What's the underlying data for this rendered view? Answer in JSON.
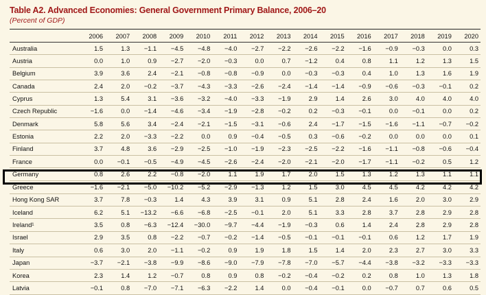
{
  "title": "Table A2. Advanced Economies: General Government Primary Balance, 2006–20",
  "subtitle": "(Percent of GDP)",
  "years": [
    "2006",
    "2007",
    "2008",
    "2009",
    "2010",
    "2011",
    "2012",
    "2013",
    "2014",
    "2015",
    "2016",
    "2017",
    "2018",
    "2019",
    "2020"
  ],
  "rows": [
    {
      "country": "Australia",
      "values": [
        "1.5",
        "1.3",
        "−1.1",
        "−4.5",
        "−4.8",
        "−4.0",
        "−2.7",
        "−2.2",
        "−2.6",
        "−2.2",
        "−1.6",
        "−0.9",
        "−0.3",
        "0.0",
        "0.3"
      ]
    },
    {
      "country": "Austria",
      "values": [
        "0.0",
        "1.0",
        "0.9",
        "−2.7",
        "−2.0",
        "−0.3",
        "0.0",
        "0.7",
        "−1.2",
        "0.4",
        "0.8",
        "1.1",
        "1.2",
        "1.3",
        "1.5"
      ]
    },
    {
      "country": "Belgium",
      "values": [
        "3.9",
        "3.6",
        "2.4",
        "−2.1",
        "−0.8",
        "−0.8",
        "−0.9",
        "0.0",
        "−0.3",
        "−0.3",
        "0.4",
        "1.0",
        "1.3",
        "1.6",
        "1.9"
      ]
    },
    {
      "country": "Canada",
      "values": [
        "2.4",
        "2.0",
        "−0.2",
        "−3.7",
        "−4.3",
        "−3.3",
        "−2.6",
        "−2.4",
        "−1.4",
        "−1.4",
        "−0.9",
        "−0.6",
        "−0.3",
        "−0.1",
        "0.2"
      ]
    },
    {
      "country": "Cyprus",
      "values": [
        "1.3",
        "5.4",
        "3.1",
        "−3.6",
        "−3.2",
        "−4.0",
        "−3.3",
        "−1.9",
        "2.9",
        "1.4",
        "2.6",
        "3.0",
        "4.0",
        "4.0",
        "4.0"
      ]
    },
    {
      "country": "Czech Republic",
      "values": [
        "−1.6",
        "0.0",
        "−1.4",
        "−4.6",
        "−3.4",
        "−1.9",
        "−2.8",
        "−0.2",
        "0.2",
        "−0.3",
        "−0.1",
        "0.0",
        "−0.1",
        "0.0",
        "0.2"
      ]
    },
    {
      "country": "Denmark",
      "values": [
        "5.8",
        "5.6",
        "3.4",
        "−2.4",
        "−2.1",
        "−1.5",
        "−3.1",
        "−0.6",
        "2.4",
        "−1.7",
        "−1.5",
        "−1.6",
        "−1.1",
        "−0.7",
        "−0.2"
      ]
    },
    {
      "country": "Estonia",
      "values": [
        "2.2",
        "2.0",
        "−3.3",
        "−2.2",
        "0.0",
        "0.9",
        "−0.4",
        "−0.5",
        "0.3",
        "−0.6",
        "−0.2",
        "0.0",
        "0.0",
        "0.0",
        "0.1"
      ]
    },
    {
      "country": "Finland",
      "values": [
        "3.7",
        "4.8",
        "3.6",
        "−2.9",
        "−2.5",
        "−1.0",
        "−1.9",
        "−2.3",
        "−2.5",
        "−2.2",
        "−1.6",
        "−1.1",
        "−0.8",
        "−0.6",
        "−0.4"
      ]
    },
    {
      "country": "France",
      "values": [
        "0.0",
        "−0.1",
        "−0.5",
        "−4.9",
        "−4.5",
        "−2.6",
        "−2.4",
        "−2.0",
        "−2.1",
        "−2.0",
        "−1.7",
        "−1.1",
        "−0.2",
        "0.5",
        "1.2"
      ]
    },
    {
      "country": "Germany",
      "values": [
        "0.8",
        "2.6",
        "2.2",
        "−0.8",
        "−2.0",
        "1.1",
        "1.9",
        "1.7",
        "2.0",
        "1.5",
        "1.3",
        "1.2",
        "1.3",
        "1.1",
        "1.1"
      ],
      "partial": true
    },
    {
      "country": "Greece",
      "values": [
        "−1.6",
        "−2.1",
        "−5.0",
        "−10.2",
        "−5.2",
        "−2.9",
        "−1.3",
        "1.2",
        "1.5",
        "3.0",
        "4.5",
        "4.5",
        "4.2",
        "4.2",
        "4.2"
      ],
      "highlight": true
    },
    {
      "country": "Hong Kong SAR",
      "values": [
        "3.7",
        "7.8",
        "−0.3",
        "1.4",
        "4.3",
        "3.9",
        "3.1",
        "0.9",
        "5.1",
        "2.8",
        "2.4",
        "1.6",
        "2.0",
        "3.0",
        "2.9"
      ]
    },
    {
      "country": "Iceland",
      "values": [
        "6.2",
        "5.1",
        "−13.2",
        "−6.6",
        "−6.8",
        "−2.5",
        "−0.1",
        "2.0",
        "5.1",
        "3.3",
        "2.8",
        "3.7",
        "2.8",
        "2.9",
        "2.8"
      ]
    },
    {
      "country": "Ireland¹",
      "values": [
        "3.5",
        "0.8",
        "−6.3",
        "−12.4",
        "−30.0",
        "−9.7",
        "−4.4",
        "−1.9",
        "−0.3",
        "0.6",
        "1.4",
        "2.4",
        "2.8",
        "2.9",
        "2.8"
      ]
    },
    {
      "country": "Israel",
      "values": [
        "2.9",
        "3.5",
        "0.8",
        "−2.2",
        "−0.7",
        "−0.2",
        "−1.4",
        "−0.5",
        "−0.1",
        "−0.1",
        "−0.1",
        "0.6",
        "1.2",
        "1.7",
        "1.9"
      ]
    },
    {
      "country": "Italy",
      "values": [
        "0.6",
        "3.0",
        "2.0",
        "−1.1",
        "−0.2",
        "0.9",
        "1.9",
        "1.8",
        "1.5",
        "1.4",
        "2.0",
        "2.3",
        "2.7",
        "3.0",
        "3.3"
      ]
    },
    {
      "country": "Japan",
      "values": [
        "−3.7",
        "−2.1",
        "−3.8",
        "−9.9",
        "−8.6",
        "−9.0",
        "−7.9",
        "−7.8",
        "−7.0",
        "−5.7",
        "−4.4",
        "−3.8",
        "−3.2",
        "−3.3",
        "−3.3"
      ]
    },
    {
      "country": "Korea",
      "values": [
        "2.3",
        "1.4",
        "1.2",
        "−0.7",
        "0.8",
        "0.9",
        "0.8",
        "−0.2",
        "−0.4",
        "−0.2",
        "0.2",
        "0.8",
        "1.0",
        "1.3",
        "1.8"
      ]
    },
    {
      "country": "Latvia",
      "values": [
        "−0.1",
        "0.8",
        "−7.0",
        "−7.1",
        "−6.3",
        "−2.2",
        "1.4",
        "0.0",
        "−0.4",
        "−0.1",
        "0.0",
        "−0.7",
        "0.7",
        "0.6",
        "0.5"
      ]
    }
  ]
}
